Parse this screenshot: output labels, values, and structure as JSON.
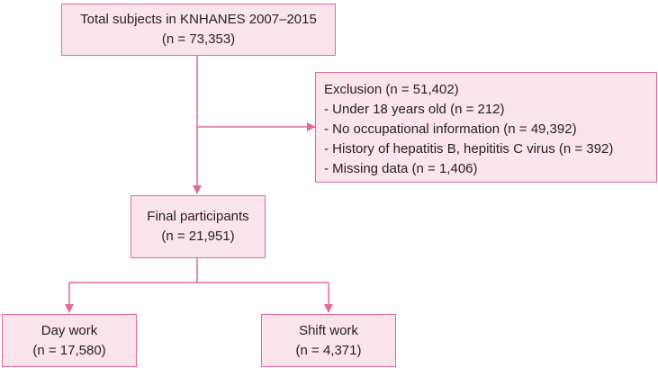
{
  "nodes": {
    "total": {
      "title": "Total subjects in KNHANES 2007–2015",
      "count": "(n = 73,353)"
    },
    "exclusion": {
      "title": "Exclusion (n = 51,402)",
      "items": [
        "- Under 18 years old (n = 212)",
        "- No occupational information (n = 49,392)",
        "- History of hepatitis B, hepititis C virus (n = 392)",
        "- Missing data (n = 1,406)"
      ]
    },
    "final": {
      "title": "Final participants",
      "count": "(n = 21,951)"
    },
    "day_work": {
      "title": "Day work",
      "count": "(n = 17,580)"
    },
    "shift_work": {
      "title": "Shift work",
      "count": "(n = 4,371)"
    }
  },
  "colors": {
    "box_fill": "#fbe4ec",
    "box_border": "#e26b8e",
    "connector": "#e26b8e",
    "text": "#231f20"
  }
}
